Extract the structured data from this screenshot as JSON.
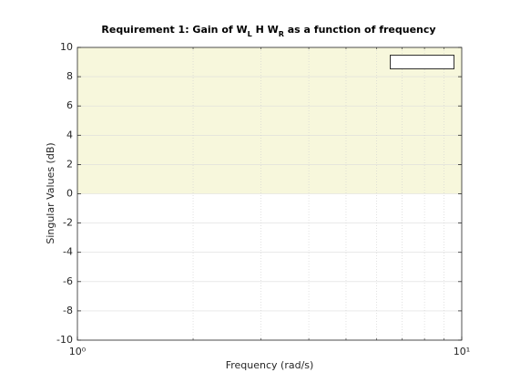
{
  "chart_data": {
    "type": "region",
    "title_parts": [
      "Requirement 1: Gain of W",
      "L",
      " H W",
      "R",
      " as a function of frequency"
    ],
    "xlabel": "Frequency (rad/s)",
    "ylabel": "Singular Values (dB)",
    "xscale": "log",
    "xlim": [
      1,
      10
    ],
    "xticks": [
      {
        "value": 1,
        "label": "10⁰"
      },
      {
        "value": 10,
        "label": "10¹"
      }
    ],
    "xminorticks": [
      2,
      3,
      4,
      5,
      6,
      7,
      8,
      9
    ],
    "ylim": [
      -10,
      10
    ],
    "yticks": [
      -10,
      -8,
      -6,
      -4,
      -2,
      0,
      2,
      4,
      6,
      8,
      10
    ],
    "grid": true,
    "region": {
      "y": [
        0,
        10
      ],
      "color": "#f7f7dc"
    }
  }
}
